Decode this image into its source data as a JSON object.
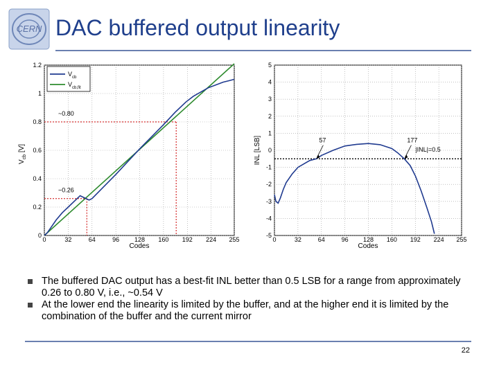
{
  "slide": {
    "title": "DAC buffered output linearity",
    "logo_text": "CERN",
    "page_number": "22"
  },
  "bullets": [
    "The buffered DAC output has a best-fit INL better than 0.5 LSB for a range from approximately 0.26 to 0.80 V, i.e., ~0.54 V",
    "At the lower end the linearity is limited by the buffer, and at the higher end it is limited by the combination of the buffer and the current mirror"
  ],
  "colors": {
    "title": "#1f3f8c",
    "rule": "#6a7fb0",
    "vcb": "#1f3a8f",
    "fit": "#2e8b2e",
    "marker": "#cc0000"
  },
  "chart_data": [
    {
      "type": "line",
      "xlabel": "Codes",
      "ylabel": "V_cb [V]",
      "ylabel_main": "V",
      "ylabel_sub": "cb",
      "ylabel_unit": "[V]",
      "xlim": [
        0,
        255
      ],
      "ylim": [
        0,
        1.2
      ],
      "xticks": [
        0,
        32,
        64,
        96,
        128,
        160,
        192,
        224,
        255
      ],
      "yticks": [
        0,
        0.2,
        0.4,
        0.6,
        0.8,
        1,
        1.2
      ],
      "ytick_labels": [
        "0",
        "0.2",
        "0.4",
        "0.6",
        "0.8",
        "1",
        "1.2"
      ],
      "grid": true,
      "legend_position": "top-left",
      "legend": [
        {
          "main": "V",
          "sub": "cb"
        },
        {
          "main": "V",
          "sub": "cb,fit"
        }
      ],
      "series": [
        {
          "name": "V_cb",
          "x": [
            0,
            4,
            8,
            16,
            24,
            32,
            48,
            60,
            64,
            96,
            128,
            160,
            176,
            190,
            200,
            210,
            220,
            230,
            240,
            248,
            255
          ],
          "y": [
            0.0,
            0.02,
            0.05,
            0.11,
            0.16,
            0.2,
            0.28,
            0.25,
            0.26,
            0.43,
            0.61,
            0.78,
            0.87,
            0.94,
            0.98,
            1.01,
            1.04,
            1.06,
            1.08,
            1.09,
            1.1
          ]
        },
        {
          "name": "V_cb,fit",
          "x": [
            0,
            255
          ],
          "y": [
            0.0,
            1.21
          ]
        }
      ],
      "markers": [
        {
          "label": "~0.26",
          "x": 57,
          "y": 0.26
        },
        {
          "label": "~0.80",
          "x": 177,
          "y": 0.8
        }
      ]
    },
    {
      "type": "line",
      "xlabel": "Codes",
      "ylabel": "INL [LSB]",
      "xlim": [
        0,
        255
      ],
      "ylim": [
        -5,
        5
      ],
      "xticks": [
        0,
        32,
        64,
        96,
        128,
        160,
        192,
        224,
        255
      ],
      "yticks": [
        -5,
        -4,
        -3,
        -2,
        -1,
        0,
        1,
        2,
        3,
        4,
        5
      ],
      "grid": true,
      "series": [
        {
          "name": "INL",
          "x": [
            0,
            2,
            5,
            8,
            12,
            16,
            24,
            32,
            48,
            57,
            64,
            80,
            96,
            112,
            128,
            144,
            160,
            168,
            177,
            185,
            192,
            200,
            208,
            214,
            218
          ],
          "y": [
            -2.6,
            -3.0,
            -3.1,
            -2.8,
            -2.3,
            -1.9,
            -1.4,
            -1.0,
            -0.6,
            -0.5,
            -0.3,
            0.0,
            0.25,
            0.35,
            0.4,
            0.33,
            0.1,
            -0.15,
            -0.5,
            -0.9,
            -1.5,
            -2.4,
            -3.4,
            -4.2,
            -4.9
          ]
        }
      ],
      "threshold": {
        "label": "|INL|=0.5",
        "y": -0.5
      },
      "annotations": [
        {
          "label": "57",
          "x": 57
        },
        {
          "label": "177",
          "x": 177
        }
      ]
    }
  ]
}
